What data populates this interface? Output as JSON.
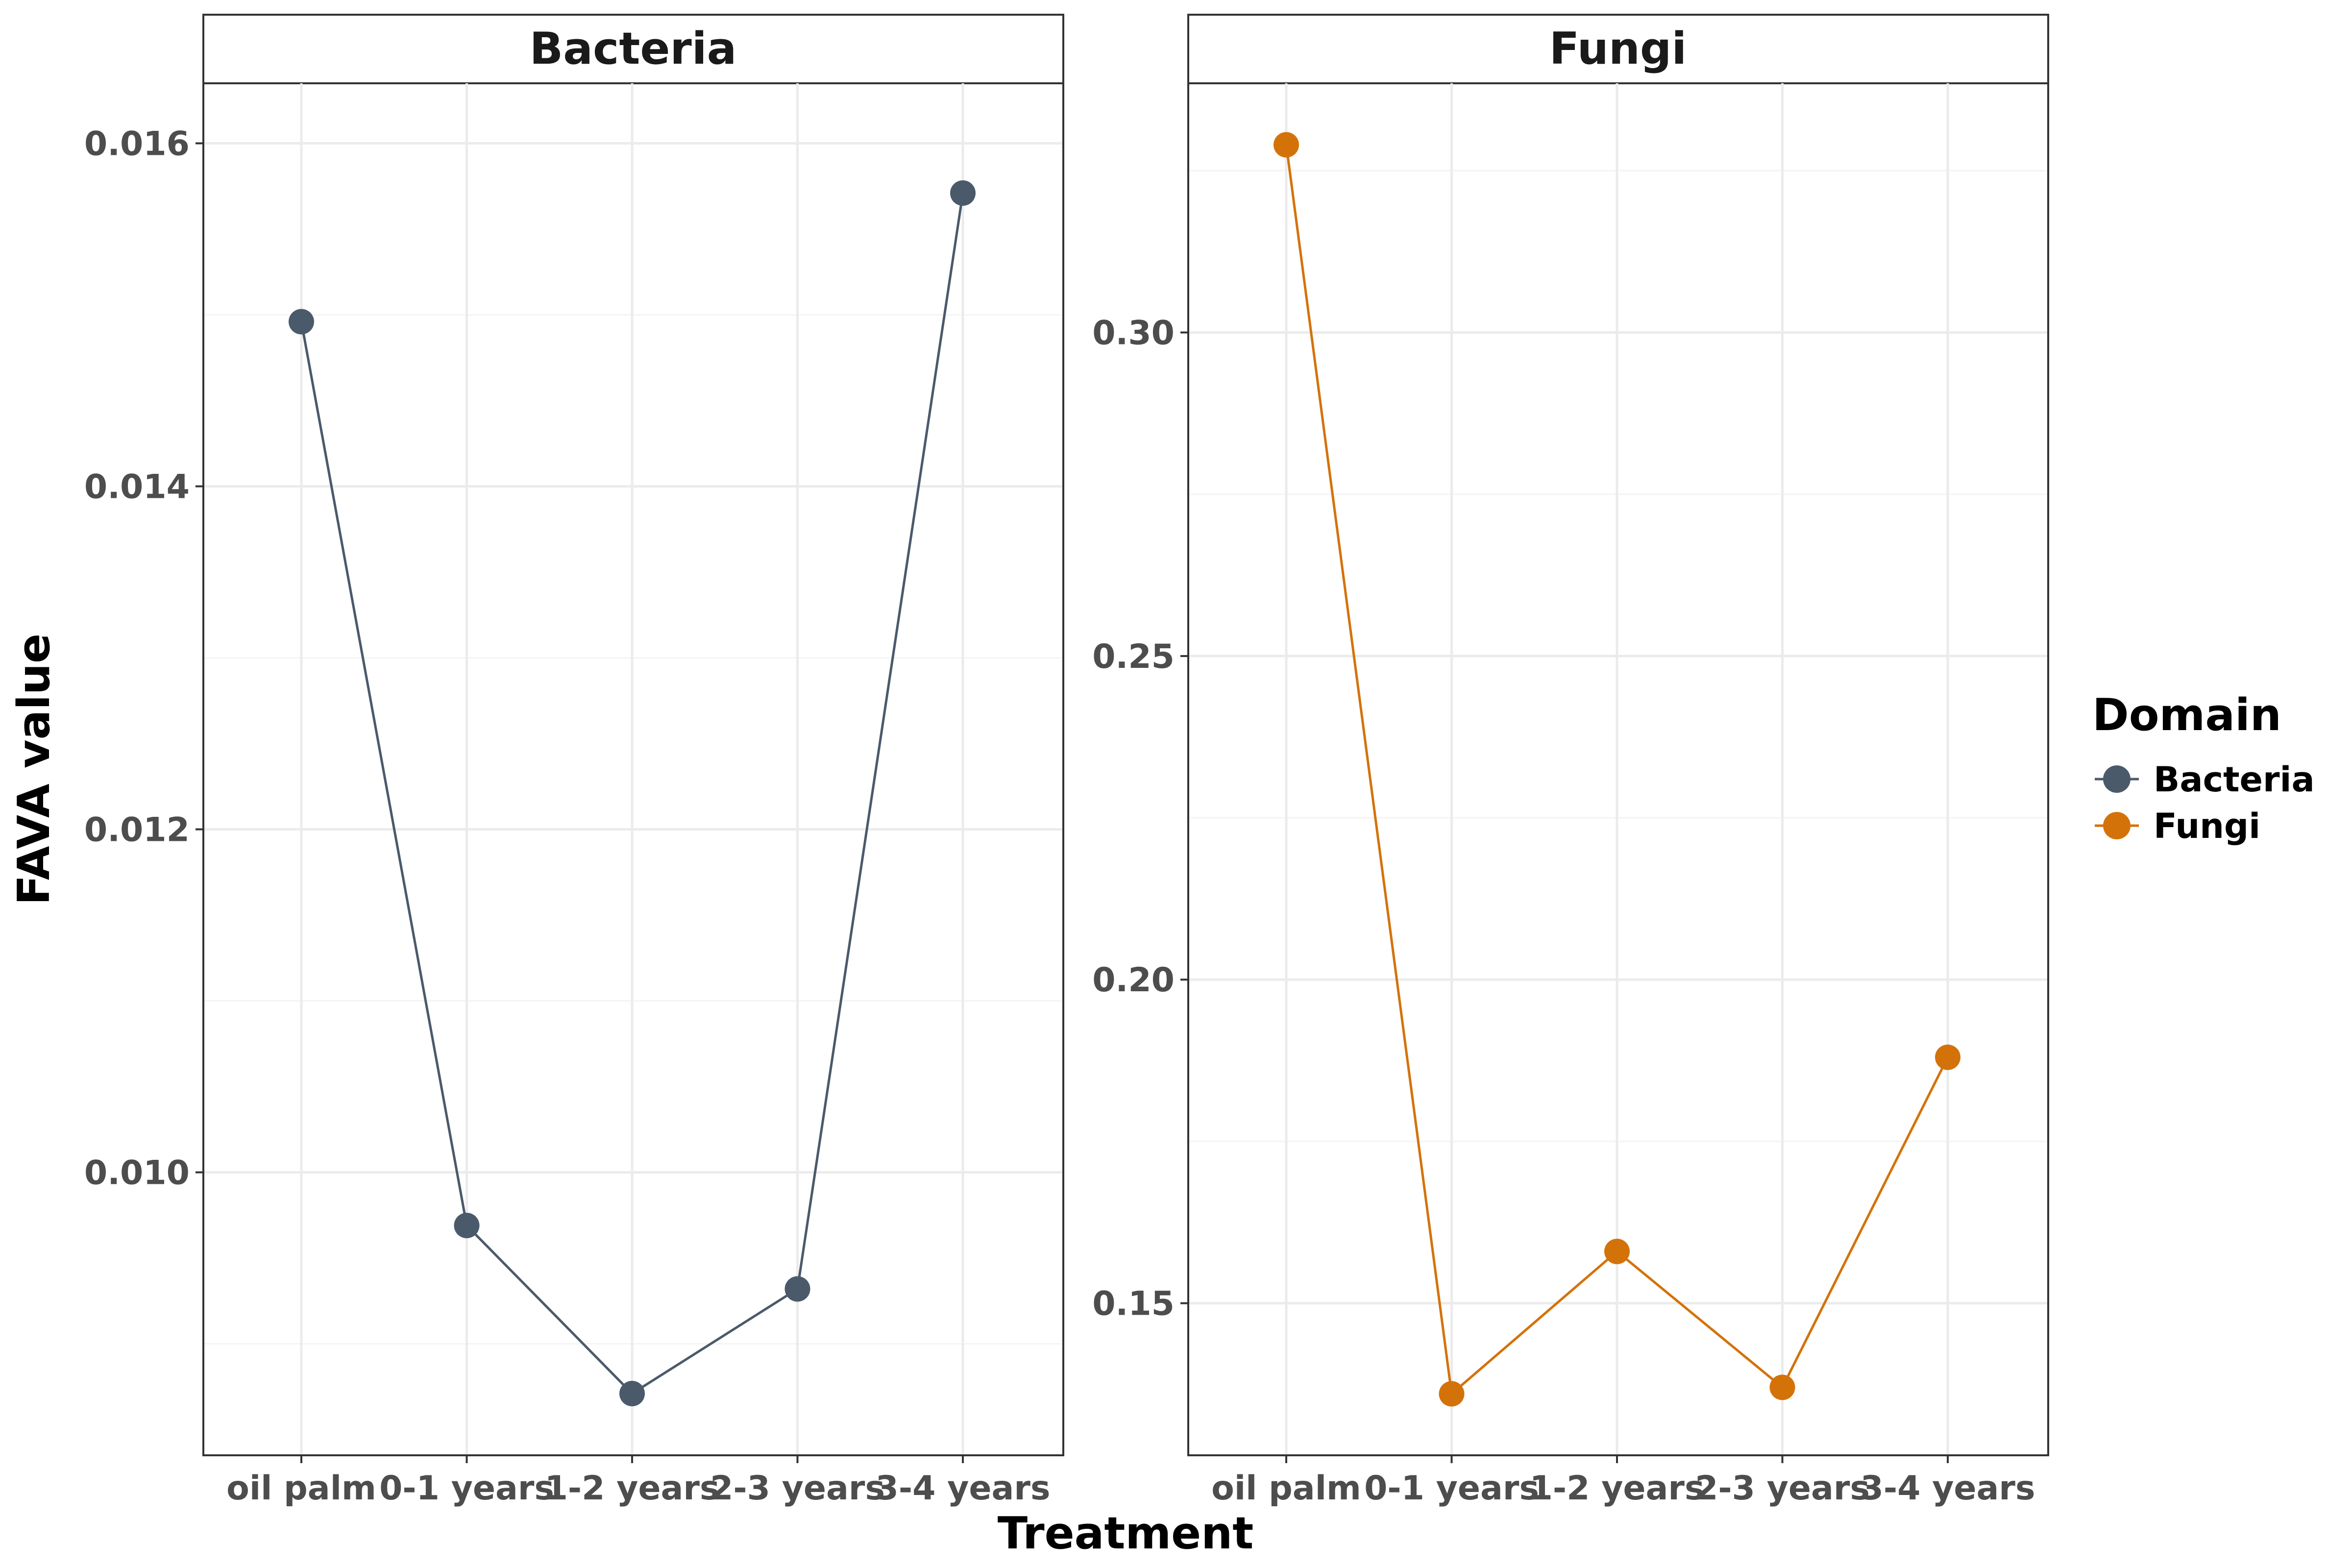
{
  "chart_data": {
    "type": "line",
    "xlabel": "Treatment",
    "ylabel": "FAVA value",
    "legend": {
      "title": "Domain",
      "placement": "right",
      "entries": [
        {
          "name": "Bacteria",
          "color": "#4a5a6b"
        },
        {
          "name": "Fungi",
          "color": "#d4720a"
        }
      ]
    },
    "categories": [
      "oil palm",
      "0-1 years",
      "1-2 years",
      "2-3 years",
      "3-4 years"
    ],
    "grid": true,
    "panels": [
      {
        "strip": "Bacteria",
        "series": [
          {
            "name": "Bacteria",
            "color": "#4a5a6b",
            "values": [
              0.01496,
              0.00969,
              0.00871,
              0.00932,
              0.01571
            ]
          }
        ],
        "ylim": [
          0.00835,
          0.01635
        ],
        "yticks": [
          0.01,
          0.012,
          0.014,
          0.016
        ],
        "yticklabels": [
          "0.010",
          "0.012",
          "0.014",
          "0.016"
        ]
      },
      {
        "strip": "Fungi",
        "series": [
          {
            "name": "Fungi",
            "color": "#d4720a",
            "values": [
              0.329,
              0.136,
              0.158,
              0.137,
              0.188
            ]
          }
        ],
        "ylim": [
          0.1265,
          0.3385
        ],
        "yticks": [
          0.15,
          0.2,
          0.25,
          0.3
        ],
        "yticklabels": [
          "0.15",
          "0.20",
          "0.25",
          "0.30"
        ]
      }
    ]
  }
}
